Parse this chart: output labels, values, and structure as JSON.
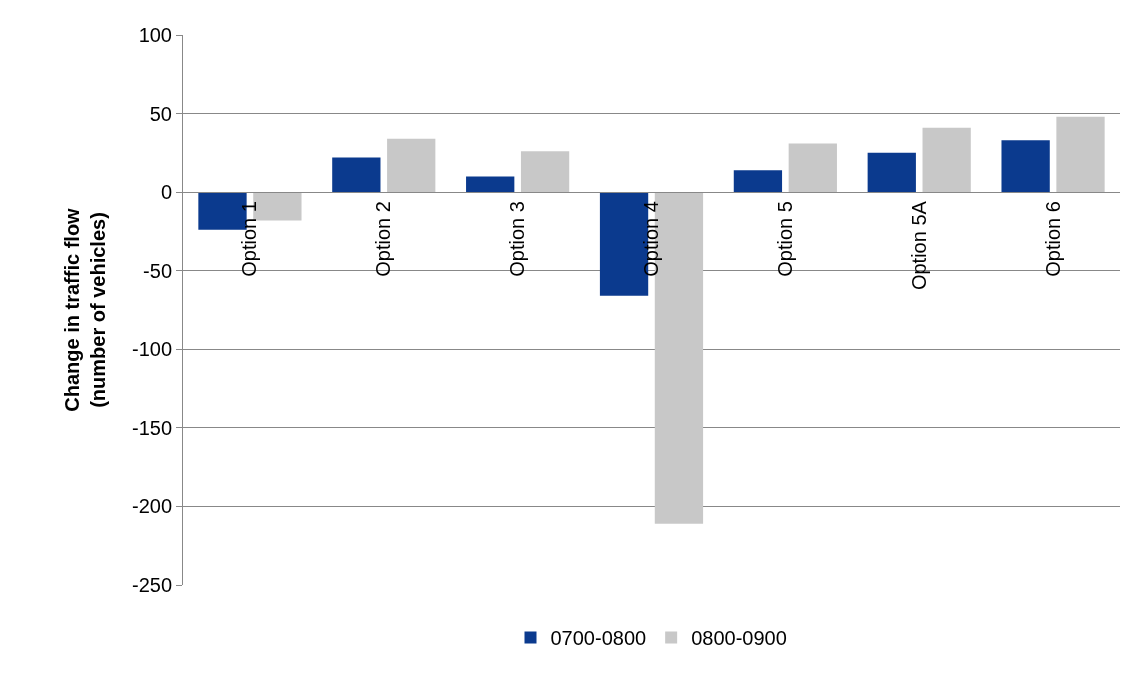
{
  "chart_data": {
    "type": "bar",
    "ylabel": "Change in traffic flow\n(number of vehicles)",
    "categories": [
      "Option 1",
      "Option 2",
      "Option 3",
      "Option 4",
      "Option 5",
      "Option 5A",
      "Option 6"
    ],
    "series": [
      {
        "name": "0700-0800",
        "color": "#0b3a8e",
        "values": [
          -24,
          22,
          10,
          -66,
          14,
          25,
          33
        ]
      },
      {
        "name": "0800-0900",
        "color": "#c8c8c8",
        "values": [
          -18,
          34,
          26,
          -211,
          31,
          41,
          48
        ]
      }
    ],
    "ylim": [
      -250,
      100
    ],
    "yticks": [
      -250,
      -200,
      -150,
      -100,
      -50,
      0,
      50,
      100
    ],
    "grid": "y",
    "legend": "bottom"
  }
}
